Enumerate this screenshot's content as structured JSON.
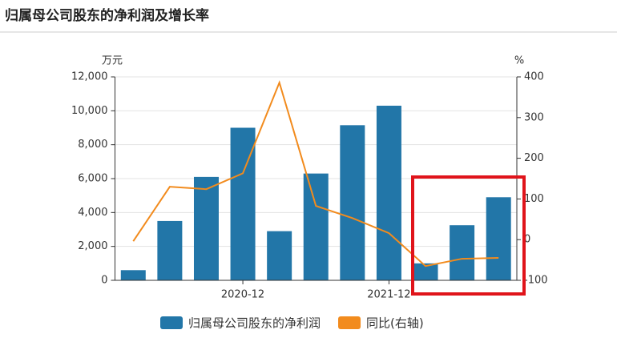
{
  "chart_data": {
    "type": "bar-line",
    "title": "归属母公司股东的净利润及增长率",
    "y_unit": "万元",
    "y2_unit": "%",
    "categories": [
      null,
      null,
      null,
      "2020-12",
      null,
      null,
      null,
      "2021-12",
      null,
      null,
      null
    ],
    "series": [
      {
        "name": "归属母公司股东的净利润",
        "type": "bar",
        "color": "#2276a8",
        "values": [
          600,
          3500,
          6100,
          9000,
          2900,
          6300,
          9150,
          10300,
          1000,
          3250,
          4900
        ]
      },
      {
        "name": "同比(右轴)",
        "type": "line",
        "axis": "y2",
        "color": "#f28b1d",
        "values": [
          -4,
          130,
          124,
          163,
          386,
          83,
          53,
          16,
          -65,
          -47,
          -45
        ]
      }
    ],
    "ylim": [
      0,
      12000
    ],
    "yticks": [
      0,
      {
        "value": 2000,
        "label": "2,000"
      },
      {
        "value": 4000,
        "label": "4,000"
      },
      {
        "value": 6000,
        "label": "6,000"
      },
      {
        "value": 8000,
        "label": "8,000"
      },
      {
        "value": 10000,
        "label": "10,000"
      },
      {
        "value": 12000,
        "label": "12,000"
      }
    ],
    "y2lim": [
      -100,
      400
    ],
    "y2ticks": [
      -100,
      0,
      100,
      200,
      300,
      400
    ],
    "grid": true
  }
}
